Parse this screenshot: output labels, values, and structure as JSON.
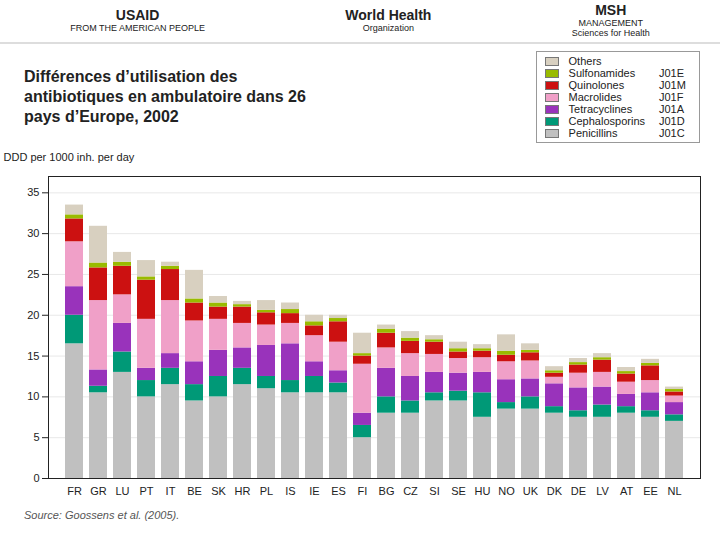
{
  "chart_data": {
    "type": "bar",
    "stacked": true,
    "title": "Différences d’utilisation des\nantibiotiques en ambulatoire dans 26\npays d’Europe, 2002",
    "annotations": [
      [
        "USAID",
        "FROM THE AMERICAN PEOPLE"
      ],
      [
        "World Health",
        "Organization"
      ],
      [
        "MSH",
        "MANAGEMENT",
        "Sciences for Health"
      ]
    ],
    "caption": "Source: Goossens et al. (2005).",
    "ylabel": "DDD per 1000 inh. per day",
    "categories": [
      "FR",
      "GR",
      "LU",
      "PT",
      "IT",
      "BE",
      "SK",
      "HR",
      "PL",
      "IS",
      "IE",
      "ES",
      "FI",
      "BG",
      "CZ",
      "SI",
      "SE",
      "HU",
      "NO",
      "UK",
      "DK",
      "DE",
      "LV",
      "AT",
      "EE",
      "NL"
    ],
    "series": [
      {
        "name": "Penicillins",
        "code": "J01C",
        "color": "#c0c0c0",
        "values": [
          16.5,
          10.5,
          13.0,
          10.0,
          11.5,
          9.5,
          10.0,
          11.5,
          11.0,
          10.5,
          10.5,
          10.5,
          5.0,
          8.0,
          8.0,
          9.5,
          9.5,
          7.5,
          8.5,
          8.5,
          8.0,
          7.5,
          7.5,
          8.0,
          7.5,
          7.0
        ]
      },
      {
        "name": "Cephalosporins",
        "code": "J01D",
        "color": "#009977",
        "values": [
          3.5,
          0.8,
          2.5,
          2.0,
          2.0,
          2.0,
          2.5,
          2.0,
          1.5,
          1.5,
          2.0,
          1.2,
          1.5,
          2.0,
          1.5,
          1.0,
          1.2,
          3.0,
          0.8,
          1.5,
          0.8,
          0.8,
          1.5,
          0.8,
          0.8,
          0.8
        ]
      },
      {
        "name": "Tetracyclines",
        "code": "J01A",
        "color": "#9933bb",
        "values": [
          3.5,
          2.0,
          3.5,
          1.5,
          1.8,
          2.8,
          3.2,
          2.5,
          3.8,
          4.5,
          1.8,
          1.5,
          1.5,
          3.5,
          3.0,
          2.5,
          2.2,
          2.5,
          2.8,
          2.2,
          2.8,
          2.8,
          2.2,
          1.5,
          2.2,
          1.5
        ]
      },
      {
        "name": "Macrolides",
        "code": "J01F",
        "color": "#f0a0c8",
        "values": [
          5.5,
          8.5,
          3.5,
          6.0,
          6.5,
          5.0,
          3.8,
          3.0,
          2.5,
          2.5,
          3.2,
          3.5,
          6.0,
          2.5,
          2.8,
          2.2,
          1.8,
          1.8,
          2.2,
          2.2,
          0.8,
          1.8,
          1.8,
          1.5,
          1.5,
          0.8
        ]
      },
      {
        "name": "Quinolones",
        "code": "J01M",
        "color": "#cc1111",
        "values": [
          2.8,
          4.0,
          3.5,
          4.8,
          3.8,
          2.2,
          1.5,
          2.0,
          1.5,
          1.2,
          1.2,
          2.5,
          1.0,
          1.8,
          1.5,
          1.5,
          0.8,
          0.8,
          0.8,
          1.0,
          0.5,
          1.0,
          1.5,
          1.0,
          1.8,
          0.5
        ]
      },
      {
        "name": "Sulfonamides",
        "code": "J01E",
        "color": "#99bb00",
        "values": [
          0.5,
          0.6,
          0.5,
          0.4,
          0.4,
          0.5,
          0.5,
          0.3,
          0.3,
          0.5,
          0.5,
          0.4,
          0.3,
          0.5,
          0.4,
          0.3,
          0.4,
          0.3,
          0.5,
          0.3,
          0.3,
          0.3,
          0.3,
          0.3,
          0.3,
          0.3
        ]
      },
      {
        "name": "Others",
        "color": "#d8d0c0",
        "values": [
          1.2,
          4.5,
          1.2,
          2.0,
          0.5,
          3.5,
          0.8,
          0.4,
          1.2,
          0.8,
          0.8,
          0.4,
          2.5,
          0.5,
          0.8,
          0.5,
          0.8,
          0.5,
          2.0,
          0.8,
          0.5,
          0.5,
          0.5,
          0.5,
          0.5,
          0.3
        ]
      }
    ],
    "ylim": [
      0,
      37
    ],
    "yticks": [
      0,
      5,
      10,
      15,
      20,
      25,
      30,
      35
    ],
    "grid": true,
    "legend": "upper right"
  }
}
